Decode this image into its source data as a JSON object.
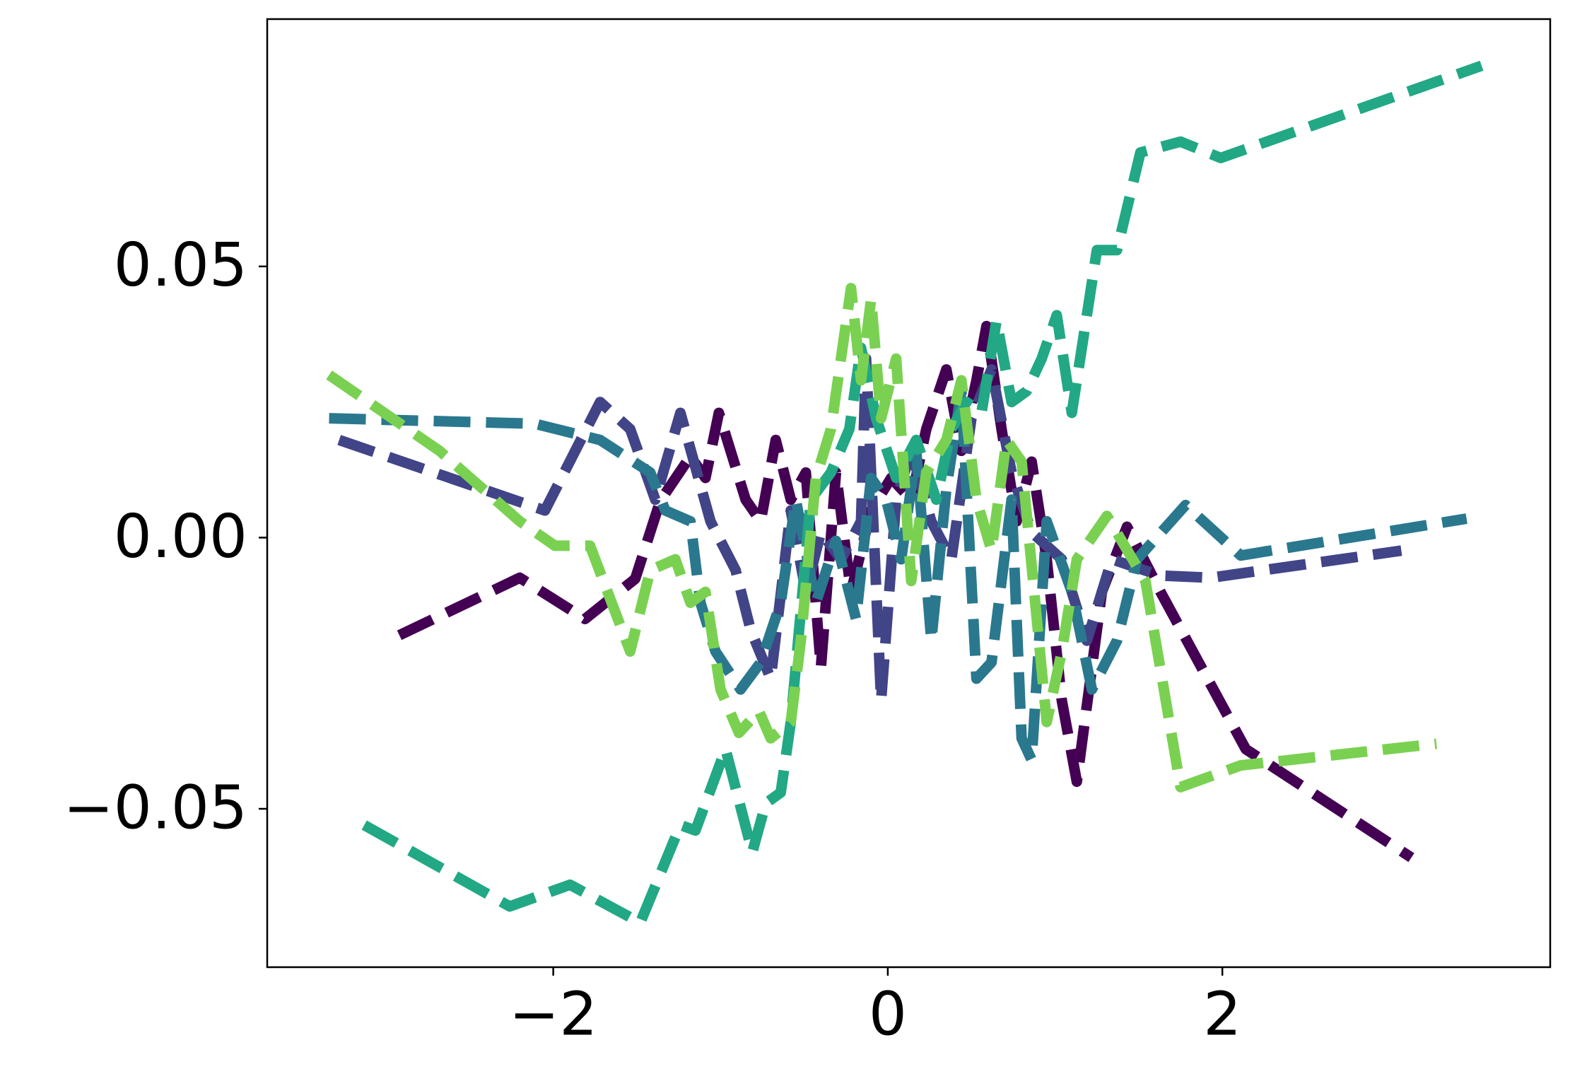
{
  "chart_data": {
    "type": "line",
    "linestyle": "dashed",
    "xlim": [
      -3.71,
      3.96
    ],
    "ylim": [
      -0.0792,
      0.0956
    ],
    "xticks": [
      {
        "value": -2,
        "label": "−2"
      },
      0,
      2
    ],
    "yticks": [
      {
        "value": -0.05,
        "label": "−0.05"
      },
      {
        "value": 0,
        "label": "0.00"
      },
      0.05
    ],
    "series": [
      {
        "color": "#440154",
        "x": [
          -2.92,
          -2.2,
          -1.81,
          -1.51,
          -1.36,
          -1.18,
          -1.09,
          -1.01,
          -0.85,
          -0.76,
          -0.67,
          -0.58,
          -0.49,
          -0.4,
          -0.31,
          -0.22,
          -0.1,
          0.02,
          0.14,
          0.23,
          0.35,
          0.44,
          0.53,
          0.59,
          0.68,
          0.77,
          0.86,
          0.95,
          1.04,
          1.13,
          1.28,
          1.43,
          1.63,
          2.14,
          3.13
        ],
        "values": [
          -0.018,
          -0.0074,
          -0.015,
          -0.0076,
          0.0068,
          0.015,
          0.011,
          0.023,
          0.007,
          0.003,
          0.018,
          0.007,
          0.012,
          -0.024,
          0.012,
          -0.01,
          0.005,
          0.011,
          0.007,
          0.02,
          0.031,
          0.016,
          0.029,
          0.039,
          0.02,
          0.003,
          0.014,
          -0.004,
          -0.03,
          -0.045,
          -0.01,
          0.002,
          -0.01,
          -0.039,
          -0.059
        ]
      },
      {
        "color": "#414487",
        "x": [
          -3.28,
          -2.05,
          -1.72,
          -1.54,
          -1.39,
          -1.24,
          -1.06,
          -0.91,
          -0.82,
          -0.7,
          -0.58,
          -0.49,
          -0.4,
          -0.28,
          -0.16,
          -0.13,
          -0.04,
          0.05,
          0.14,
          0.26,
          0.38,
          0.5,
          0.62,
          0.74,
          0.86,
          1.04,
          1.19,
          1.34,
          1.63,
          1.93,
          3.07
        ],
        "values": [
          0.018,
          0.005,
          0.025,
          0.02,
          0.007,
          0.023,
          0.003,
          -0.006,
          -0.017,
          -0.026,
          0.005,
          -0.01,
          0.001,
          -0.004,
          0.003,
          0.033,
          -0.03,
          0.007,
          0.016,
          0.003,
          -0.004,
          0.022,
          0.031,
          0.012,
          0.001,
          -0.004,
          -0.019,
          -0.004,
          -0.007,
          -0.0074,
          -0.0024
        ]
      },
      {
        "color": "#2a788e",
        "x": [
          -3.34,
          -2.11,
          -1.72,
          -1.42,
          -1.33,
          -1.18,
          -1.12,
          -1.03,
          -0.88,
          -0.76,
          -0.64,
          -0.55,
          -0.43,
          -0.31,
          -0.19,
          -0.1,
          -0.01,
          0.08,
          0.17,
          0.26,
          0.35,
          0.44,
          0.53,
          0.62,
          0.74,
          0.8,
          0.86,
          0.95,
          1.1,
          1.22,
          1.37,
          1.49,
          1.78,
          2.11,
          3.46
        ],
        "values": [
          0.022,
          0.021,
          0.018,
          0.012,
          0.005,
          0.003,
          -0.012,
          -0.021,
          -0.028,
          -0.023,
          -0.012,
          0.007,
          -0.012,
          -0.0006,
          -0.015,
          0.011,
          0.007,
          -0.004,
          0.016,
          -0.019,
          0.009,
          0.027,
          -0.026,
          -0.023,
          0.007,
          -0.037,
          -0.041,
          0.003,
          -0.01,
          -0.028,
          -0.019,
          -0.004,
          0.006,
          -0.0033,
          0.0035
        ]
      },
      {
        "color": "#22a884",
        "x": [
          -3.13,
          -2.26,
          -1.9,
          -1.48,
          -1.24,
          -1.15,
          -0.97,
          -0.81,
          -0.73,
          -0.64,
          -0.58,
          -0.46,
          -0.34,
          -0.23,
          -0.16,
          -0.07,
          0.05,
          0.17,
          0.29,
          0.38,
          0.47,
          0.56,
          0.65,
          0.74,
          0.83,
          0.92,
          1.01,
          1.1,
          1.25,
          1.37,
          1.51,
          1.75,
          1.99,
          3.55
        ],
        "values": [
          -0.053,
          -0.068,
          -0.064,
          -0.071,
          -0.053,
          -0.054,
          -0.039,
          -0.058,
          -0.049,
          -0.047,
          -0.034,
          0.007,
          0.012,
          0.02,
          0.035,
          0.022,
          0.011,
          0.018,
          0.007,
          0.02,
          0.025,
          0.023,
          0.04,
          0.025,
          0.027,
          0.033,
          0.041,
          0.023,
          0.053,
          0.053,
          0.071,
          0.073,
          0.07,
          0.087
        ]
      },
      {
        "color": "#7ad151",
        "x": [
          -3.34,
          -2.68,
          -2.2,
          -1.99,
          -1.78,
          -1.54,
          -1.42,
          -1.27,
          -1.18,
          -1.09,
          -1.0,
          -0.89,
          -0.77,
          -0.7,
          -0.58,
          -0.52,
          -0.43,
          -0.34,
          -0.22,
          -0.16,
          -0.1,
          -0.04,
          0.05,
          0.14,
          0.23,
          0.35,
          0.44,
          0.53,
          0.62,
          0.71,
          0.8,
          0.95,
          1.04,
          1.13,
          1.31,
          1.54,
          1.75,
          2.11,
          3.28
        ],
        "values": [
          0.03,
          0.016,
          0.003,
          -0.0015,
          -0.0015,
          -0.021,
          -0.006,
          -0.004,
          -0.012,
          -0.01,
          -0.028,
          -0.036,
          -0.032,
          -0.037,
          -0.034,
          -0.019,
          0.011,
          0.02,
          0.046,
          0.029,
          0.044,
          0.022,
          0.033,
          -0.008,
          0.012,
          0.018,
          0.029,
          0.007,
          -0.0024,
          0.018,
          0.014,
          -0.034,
          -0.021,
          -0.004,
          0.004,
          -0.008,
          -0.046,
          -0.042,
          -0.038
        ]
      }
    ]
  }
}
